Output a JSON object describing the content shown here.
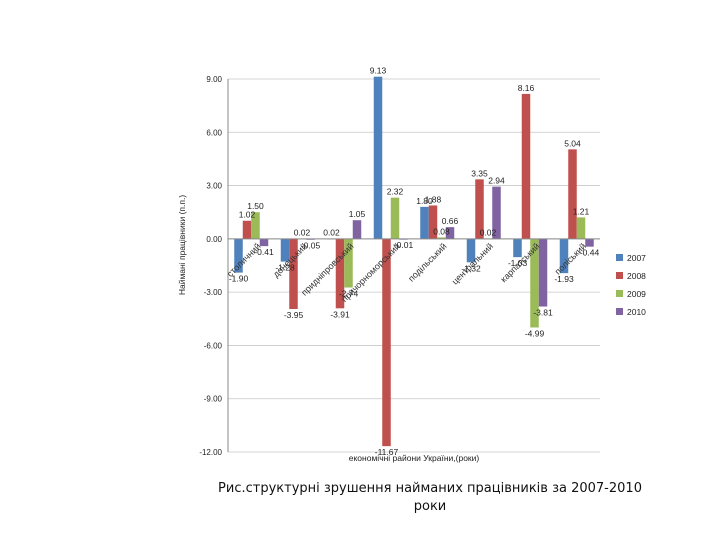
{
  "caption": "Рис.структурні зрушення найманих працівників за 2007-2010 роки",
  "chart_data": {
    "type": "bar",
    "title": "",
    "ylabel": "Наймані працівники (п.п.)",
    "xlabel": "економічні райони України,(роки)",
    "ylim": [
      -12,
      9
    ],
    "yticks": [
      9,
      6,
      3,
      0,
      -3,
      -6,
      -9,
      -12
    ],
    "ytick_labels": [
      "9.00",
      "6.00",
      "3.00",
      "0.00",
      "-3.00",
      "-6.00",
      "-9.00",
      "-12.00"
    ],
    "categories": [
      "столичний",
      "донецький",
      "придніпровський",
      "причорноморський",
      "подільський",
      "центральний",
      "карпатський",
      "поліський"
    ],
    "series": [
      {
        "name": "2007",
        "color": "#4F81BD",
        "values": [
          -1.9,
          -1.28,
          0.02,
          9.13,
          1.8,
          -1.32,
          -1.03,
          -1.93
        ]
      },
      {
        "name": "2008",
        "color": "#C0504D",
        "values": [
          1.02,
          -3.95,
          -3.91,
          -11.67,
          1.88,
          3.35,
          8.16,
          5.04
        ]
      },
      {
        "name": "2009",
        "color": "#9BBB59",
        "values": [
          1.5,
          0.02,
          -2.74,
          2.32,
          0.08,
          0.02,
          -4.99,
          1.21
        ]
      },
      {
        "name": "2010",
        "color": "#8064A2",
        "values": [
          -0.41,
          -0.05,
          1.05,
          -0.01,
          0.66,
          2.94,
          -3.81,
          -0.44
        ]
      }
    ],
    "data_labels": [
      [
        "-1.90",
        "-1.28",
        "0.02",
        "9.13",
        "1.80",
        "-1.32",
        "-1.03",
        "-1.93"
      ],
      [
        "1.02",
        "-3.95",
        "-3.91",
        "-11.67",
        "1.88",
        "3.35",
        "8.16",
        "5.04"
      ],
      [
        "1.50",
        "0.02",
        "-2.74",
        "2.32",
        "0.08",
        "0.02",
        "-4.99",
        "1.21"
      ],
      [
        "-0.41",
        "-0.05",
        "1.05",
        "-0.01",
        "0.66",
        "2.94",
        "-3.81",
        "-0.44"
      ]
    ],
    "legend": [
      "2007",
      "2008",
      "2009",
      "2010"
    ],
    "legend_position": "right",
    "grid": true
  }
}
